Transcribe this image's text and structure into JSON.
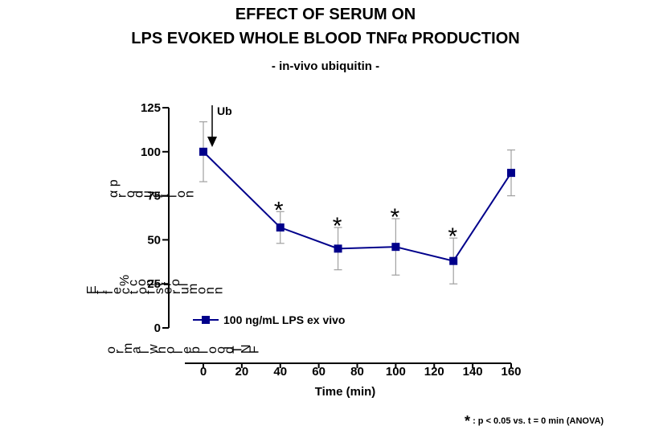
{
  "title_line1": "EFFECT OF SERUM ON",
  "title_line2": "LPS EVOKED WHOLE BLOOD TNFα PRODUCTION",
  "subtitle": "- in-vivo ubiquitin -",
  "ylabel_fragments": [
    "α p",
    "r",
    "o",
    "d",
    "u",
    "c",
    "t",
    "i",
    "o",
    "n",
    "%",
    "c",
    "o",
    "n",
    "t",
    "r",
    "o",
    "l",
    "E",
    "f",
    "f",
    "e",
    "c",
    "t",
    "o",
    "f",
    "s",
    "e",
    "r",
    "u",
    "m",
    "o",
    "n",
    "n",
    "o",
    "r",
    "m",
    "a",
    "l",
    "w",
    "h",
    "o",
    "l",
    "e",
    "b",
    "l",
    "o",
    "o",
    "d",
    "T",
    "N",
    "F"
  ],
  "annotation_arrow_label": "Ub",
  "significance_marker": "*",
  "footnote_text": ": p < 0.05 vs. t = 0 min (ANOVA)",
  "colors": {
    "series": "#00008B",
    "error_bars": "#a0a0a0",
    "axis": "#000000"
  },
  "chart_data": {
    "type": "line",
    "title": "EFFECT OF SERUM ON LPS EVOKED WHOLE BLOOD TNFα PRODUCTION",
    "subtitle": "- in-vivo ubiquitin -",
    "xlabel": "Time (min)",
    "ylabel": "",
    "xlim": [
      0,
      160
    ],
    "ylim": [
      0,
      125
    ],
    "xticks": [
      0,
      20,
      40,
      60,
      80,
      100,
      120,
      140,
      160
    ],
    "yticks": [
      0,
      25,
      50,
      75,
      100,
      125
    ],
    "grid": false,
    "legend": "bottom-center",
    "series": [
      {
        "name": "100 ng/mL LPS ex vivo",
        "marker": "square",
        "x": [
          0,
          40,
          70,
          100,
          130,
          160
        ],
        "y": [
          100,
          57,
          45,
          46,
          38,
          88
        ],
        "error": [
          17,
          9,
          12,
          16,
          13,
          13
        ],
        "significant": [
          false,
          true,
          true,
          true,
          true,
          false
        ]
      }
    ],
    "annotations": [
      {
        "text": "Ub",
        "x": 5,
        "y": 110,
        "type": "arrow-down"
      }
    ]
  }
}
